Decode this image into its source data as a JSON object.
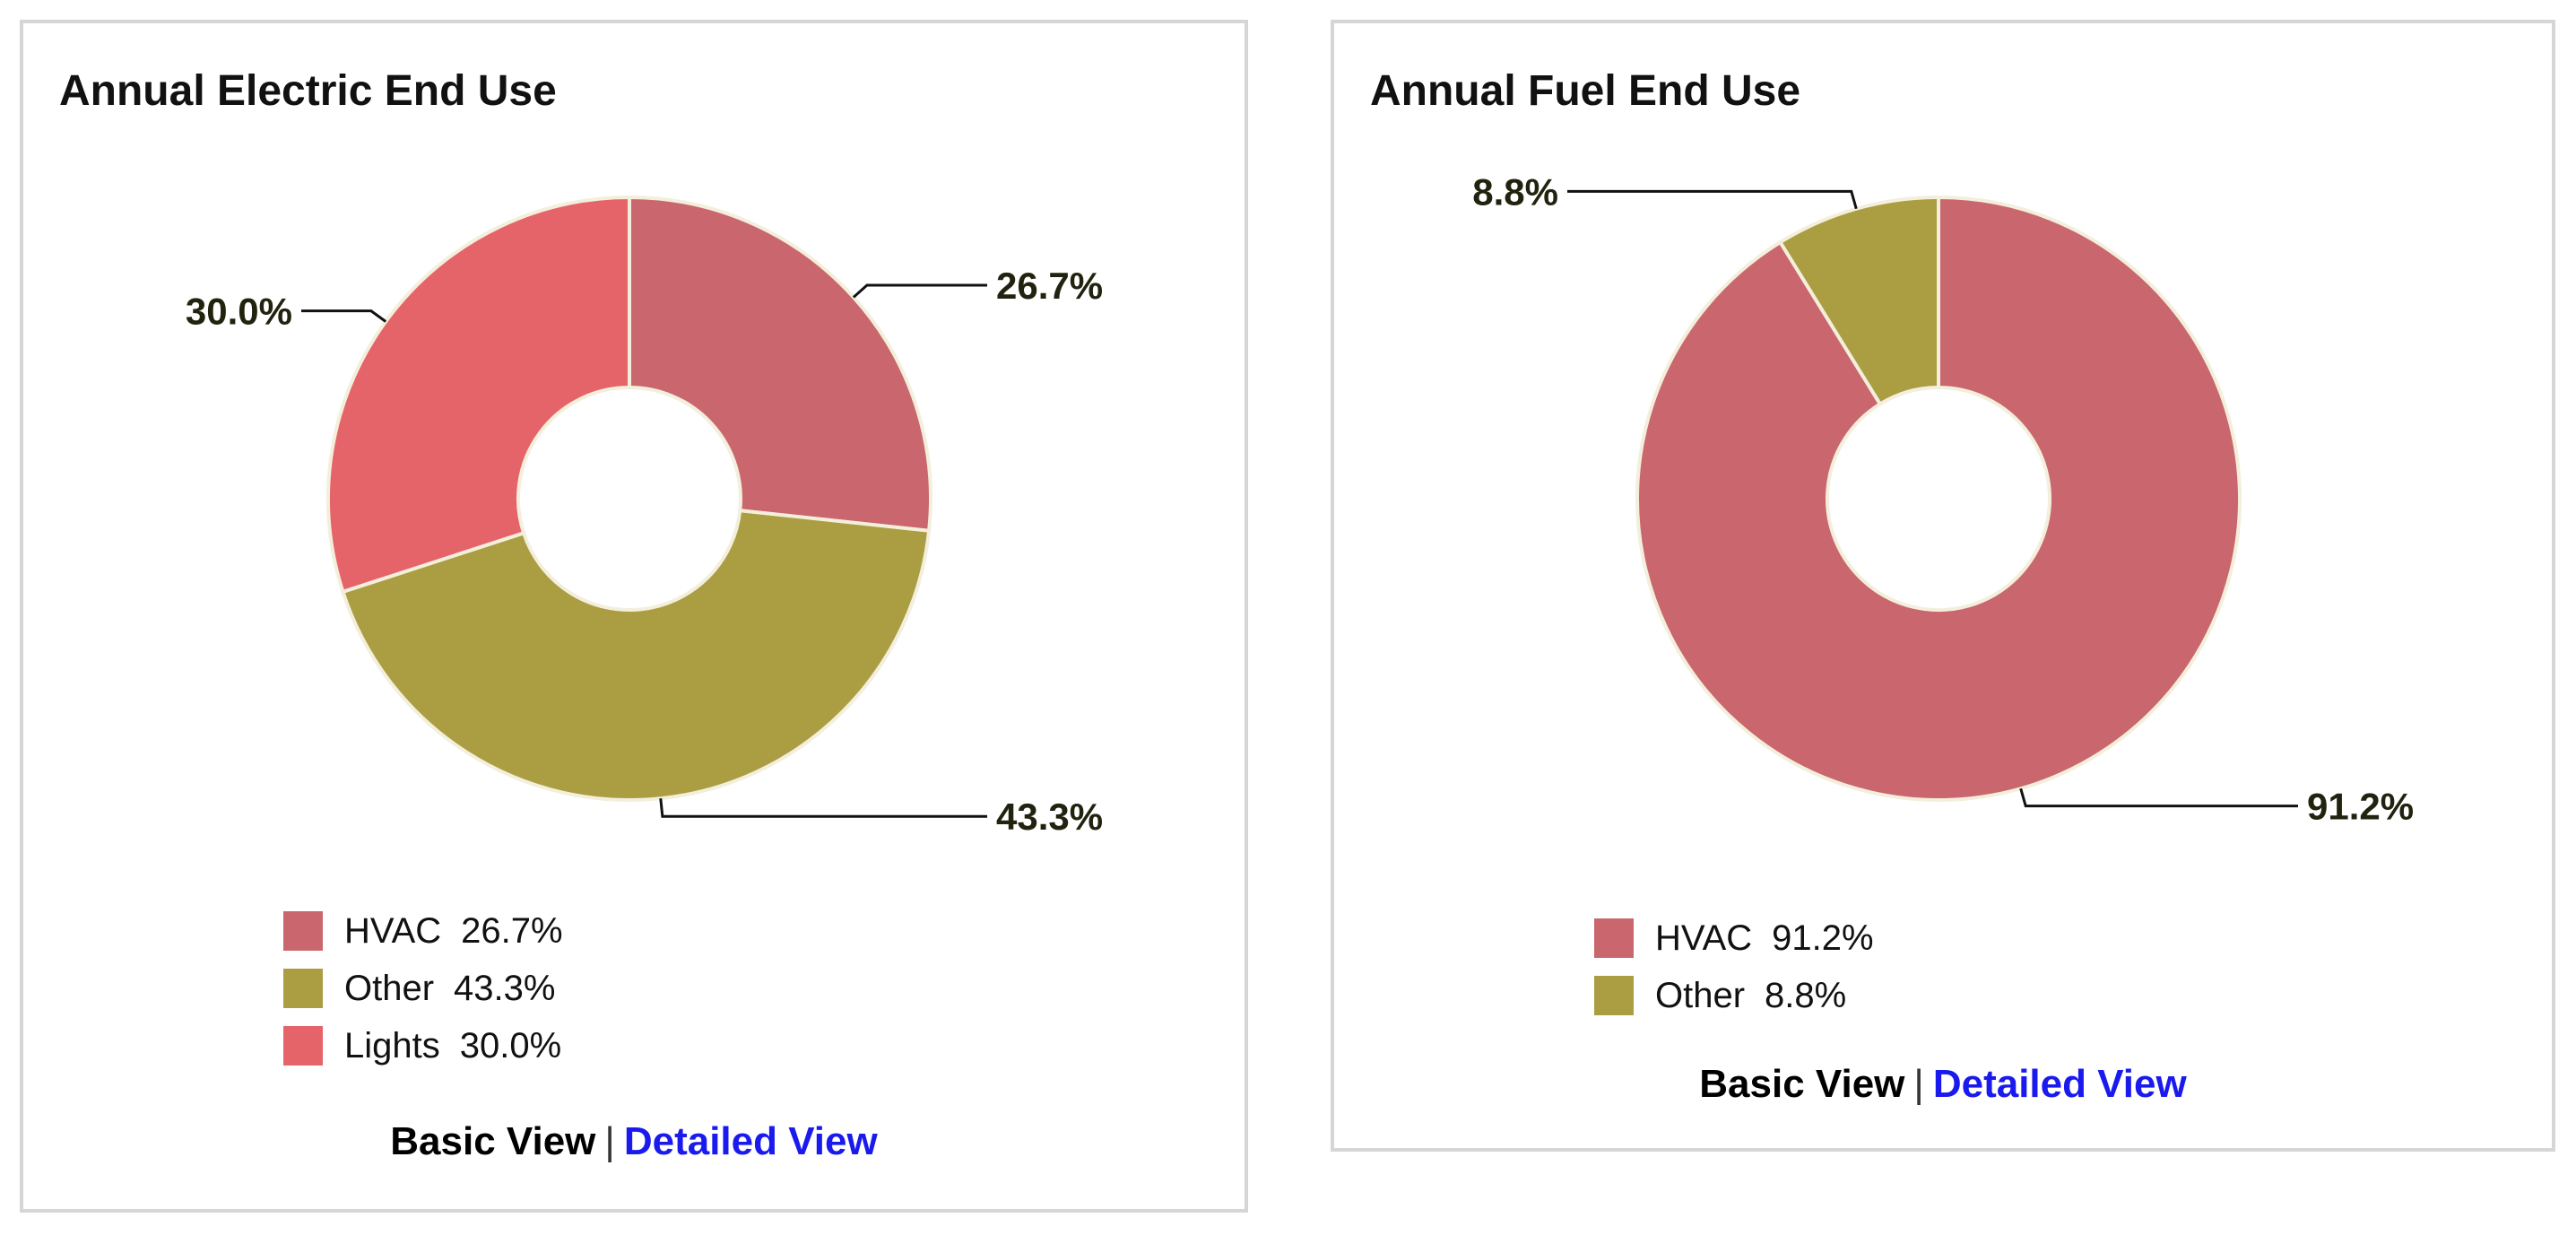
{
  "colors": {
    "hvac": "#c9666e",
    "other": "#ab9d42",
    "lights": "#e5646a",
    "leader": "#111111",
    "slice_border": "#f3efdc"
  },
  "panels": [
    {
      "id": "electric",
      "title": "Annual Electric End Use",
      "legend": [
        {
          "name": "HVAC",
          "value": "26.7%",
          "color_key": "hvac"
        },
        {
          "name": "Other",
          "value": "43.3%",
          "color_key": "other"
        },
        {
          "name": "Lights",
          "value": "30.0%",
          "color_key": "lights"
        }
      ],
      "links": {
        "basic": "Basic View",
        "separator": "|",
        "detailed": "Detailed View"
      }
    },
    {
      "id": "fuel",
      "title": "Annual Fuel End Use",
      "legend": [
        {
          "name": "HVAC",
          "value": "91.2%",
          "color_key": "hvac"
        },
        {
          "name": "Other",
          "value": "8.8%",
          "color_key": "other"
        }
      ],
      "links": {
        "basic": "Basic View",
        "separator": "|",
        "detailed": "Detailed View"
      }
    }
  ],
  "chart_data": [
    {
      "type": "pie",
      "title": "Annual Electric End Use",
      "donut": true,
      "legend": "bottom",
      "slices": [
        {
          "label": "HVAC",
          "value": 26.7,
          "display": "26.7%",
          "color": "#c9666e"
        },
        {
          "label": "Other",
          "value": 43.3,
          "display": "43.3%",
          "color": "#ab9d42"
        },
        {
          "label": "Lights",
          "value": 30.0,
          "display": "30.0%",
          "color": "#e5646a"
        }
      ]
    },
    {
      "type": "pie",
      "title": "Annual Fuel End Use",
      "donut": true,
      "legend": "bottom",
      "slices": [
        {
          "label": "HVAC",
          "value": 91.2,
          "display": "91.2%",
          "color": "#c9666e"
        },
        {
          "label": "Other",
          "value": 8.8,
          "display": "8.8%",
          "color": "#ab9d42"
        }
      ]
    }
  ]
}
